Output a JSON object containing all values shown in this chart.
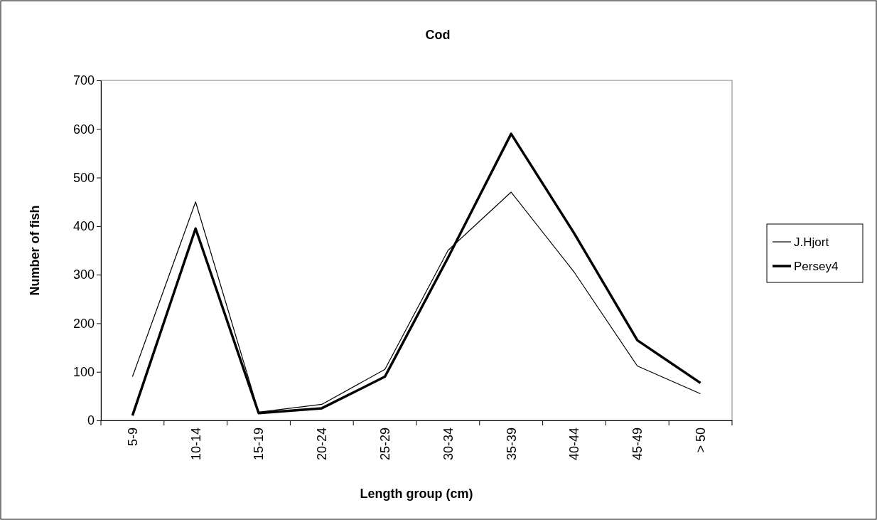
{
  "chart_data": {
    "type": "line",
    "title": "Cod",
    "xlabel": "Length group (cm)",
    "ylabel": "Number of fish",
    "categories": [
      "5-9",
      "10-14",
      "15-19",
      "20-24",
      "25-29",
      "30-34",
      "35-39",
      "40-44",
      "45-49",
      "> 50"
    ],
    "series": [
      {
        "name": "J.Hjort",
        "color": "#000000",
        "values": [
          90,
          450,
          17,
          33,
          105,
          350,
          470,
          305,
          112,
          55
        ]
      },
      {
        "name": "Persey4",
        "color": "#000000",
        "values": [
          10,
          395,
          15,
          25,
          90,
          335,
          590,
          385,
          165,
          77
        ]
      }
    ],
    "ylim": [
      0,
      700
    ],
    "yticks": [
      0,
      100,
      200,
      300,
      400,
      500,
      600,
      700
    ],
    "grid": false,
    "legend": "right",
    "marker": "none",
    "line_style": "solid"
  }
}
